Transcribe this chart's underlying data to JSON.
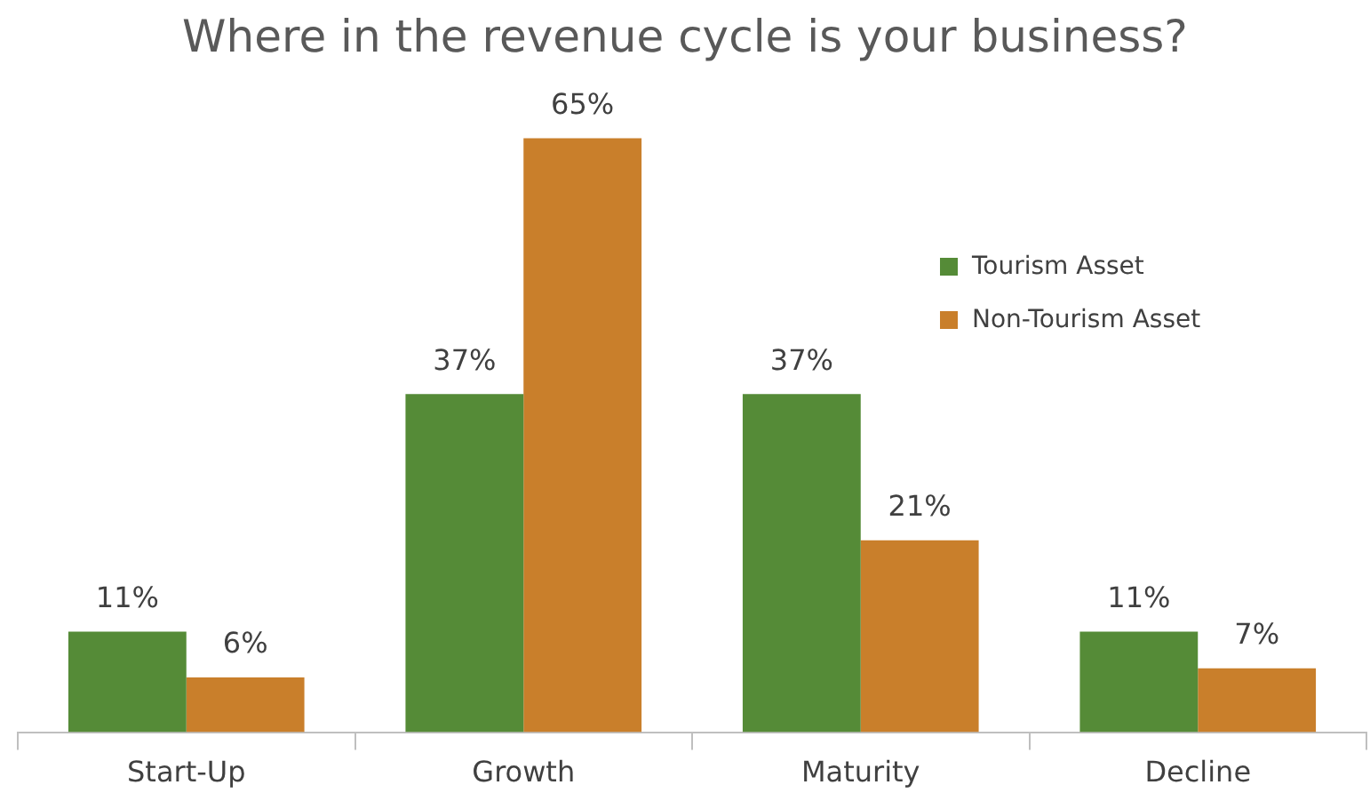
{
  "chart_data": {
    "type": "bar",
    "title": "Where in the revenue cycle is your business?",
    "categories": [
      "Start-Up",
      "Growth",
      "Maturity",
      "Decline"
    ],
    "series": [
      {
        "name": "Tourism Asset",
        "color": "#558b37",
        "values": [
          11,
          37,
          37,
          11
        ],
        "value_labels": [
          "11%",
          "37%",
          "37%",
          "11%"
        ]
      },
      {
        "name": "Non-Tourism Asset",
        "color": "#c97f2b",
        "values": [
          6,
          65,
          21,
          7
        ],
        "value_labels": [
          "6%",
          "65%",
          "21%",
          "7%"
        ]
      }
    ],
    "legend": "top right",
    "grid": false
  }
}
